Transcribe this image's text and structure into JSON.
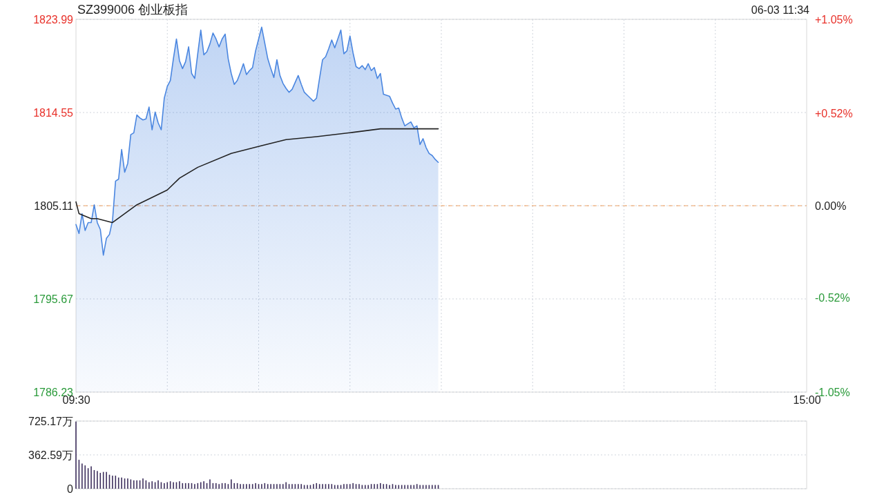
{
  "chart_data": [
    {
      "type": "area",
      "title": "SZ399006 创业板指",
      "annotations": [
        "06-03 11:34"
      ],
      "categories": [
        "09:30",
        null,
        null,
        null,
        null,
        null,
        null,
        null,
        null,
        null,
        null,
        null,
        null,
        null,
        null,
        null,
        null,
        null,
        null,
        null,
        null,
        null,
        null,
        null,
        null,
        null,
        null,
        null,
        null,
        null,
        null,
        null,
        null,
        null,
        null,
        null,
        null,
        null,
        null,
        null,
        null,
        null,
        null,
        null,
        null,
        null,
        null,
        null,
        null,
        null,
        null,
        null,
        null,
        null,
        null,
        null,
        null,
        null,
        null,
        null,
        null,
        null,
        null,
        null,
        null,
        null,
        null,
        null,
        null,
        null,
        null,
        null,
        null,
        null,
        null,
        null,
        null,
        null,
        null,
        null,
        null,
        null,
        null,
        null,
        null,
        null,
        null,
        null,
        null,
        null,
        null,
        null,
        null,
        null,
        null,
        null,
        null,
        null,
        null,
        null,
        null,
        null,
        null,
        null,
        null,
        null,
        null,
        null,
        null,
        null,
        null,
        null,
        null,
        null,
        null,
        null,
        null,
        null,
        null,
        null,
        null,
        null,
        null,
        null,
        null,
        null,
        null,
        null,
        null,
        null,
        null,
        null,
        null,
        null,
        null,
        null,
        null,
        null,
        null,
        null,
        null,
        null,
        null,
        null,
        null,
        null,
        null,
        null,
        null,
        null,
        null,
        null,
        null,
        null,
        null,
        null,
        null,
        null,
        null,
        null,
        null,
        null,
        null,
        null,
        null,
        null,
        null,
        null,
        null,
        null,
        null,
        null,
        null,
        null,
        null,
        null,
        null,
        null,
        null,
        null,
        null,
        null,
        null,
        null,
        null,
        null,
        null,
        null,
        null,
        null,
        null,
        null,
        null,
        null,
        null,
        null,
        null,
        null,
        null,
        null,
        null,
        null,
        null,
        null,
        null,
        null,
        null,
        null,
        null,
        null,
        null,
        null,
        null,
        null,
        null,
        null,
        null,
        null,
        null,
        null,
        null,
        null,
        null,
        null,
        null,
        null,
        null,
        null,
        null,
        null,
        null,
        null,
        null,
        null,
        null,
        null,
        null,
        null,
        null,
        null,
        "15:00"
      ],
      "series": [
        {
          "color": "#4a86e0",
          "values": [
            1803.2,
            1802.3,
            1804.3,
            1802.6,
            1803.4,
            1803.4,
            1805.2,
            1803.4,
            1802.7,
            1800.1,
            1801.8,
            1802.2,
            1803.6,
            1807.6,
            1807.8,
            1810.8,
            1808.5,
            1809.4,
            1812.3,
            1812.5,
            1814.3,
            1814.0,
            1813.8,
            1813.9,
            1815.1,
            1812.8,
            1814.6,
            1813.5,
            1812.8,
            1816.0,
            1817.2,
            1817.8,
            1820.0,
            1822.0,
            1819.8,
            1819.0,
            1819.7,
            1821.2,
            1818.5,
            1818.0,
            1820.5,
            1822.9,
            1820.4,
            1820.7,
            1821.5,
            1822.6,
            1822.0,
            1821.2,
            1822.0,
            1822.5,
            1820.0,
            1818.5,
            1817.4,
            1817.8,
            1818.6,
            1819.5,
            1818.4,
            1818.8,
            1819.1,
            1820.8,
            1822.0,
            1823.2,
            1821.6,
            1820.0,
            1819.0,
            1818.1,
            1819.9,
            1818.3,
            1817.5,
            1817.0,
            1816.6,
            1816.9,
            1817.6,
            1818.3,
            1817.4,
            1816.6,
            1816.3,
            1816.0,
            1815.7,
            1816.0,
            1818.0,
            1819.9,
            1820.2,
            1821.0,
            1821.9,
            1821.1,
            1822.0,
            1822.9,
            1820.5,
            1820.8,
            1822.3,
            1820.6,
            1819.2,
            1819.0,
            1819.3,
            1818.9,
            1819.5,
            1818.8,
            1819.1,
            1818.0,
            1818.5,
            1816.4,
            1816.3,
            1816.2,
            1815.5,
            1814.9,
            1815.0,
            1814.0,
            1813.2,
            1813.4,
            1813.6,
            1813.0,
            1813.2,
            1811.3,
            1811.9,
            1811.0,
            1810.4,
            1810.2,
            1809.8,
            1809.5,
            null,
            null,
            null,
            null,
            null,
            null,
            null,
            null,
            null,
            null,
            null,
            null,
            null,
            null,
            null,
            null,
            null,
            null,
            null,
            null,
            null,
            null,
            null,
            null,
            null,
            null,
            null,
            null,
            null,
            null,
            null,
            null,
            null,
            null,
            null,
            null,
            null,
            null,
            null,
            null,
            null,
            null,
            null,
            null,
            null,
            null,
            null,
            null,
            null,
            null,
            null,
            null,
            null,
            null,
            null,
            null,
            null,
            null,
            null,
            null,
            null,
            null,
            null,
            null,
            null,
            null,
            null,
            null,
            null,
            null,
            null,
            null,
            null,
            null,
            null,
            null,
            null,
            null,
            null,
            null,
            null,
            null,
            null,
            null,
            null,
            null,
            null,
            null,
            null,
            null,
            null,
            null,
            null,
            null,
            null,
            null,
            null,
            null,
            null,
            null,
            null,
            null,
            null,
            null,
            null,
            null,
            null,
            null,
            null,
            null,
            null,
            null,
            null,
            null,
            null,
            null,
            null,
            null,
            null,
            null,
            null
          ]
        },
        {
          "type": "line",
          "color": "#222222",
          "values": [
            1805.5,
            1804.3,
            null,
            null,
            null,
            1803.8,
            null,
            1803.8,
            null,
            null,
            null,
            null,
            1803.4,
            null,
            null,
            null,
            null,
            null,
            null,
            null,
            1805.2,
            null,
            null,
            null,
            null,
            null,
            null,
            null,
            null,
            null,
            1806.7,
            null,
            null,
            null,
            1807.9,
            null,
            null,
            null,
            null,
            null,
            1809.0,
            null,
            null,
            null,
            null,
            null,
            null,
            null,
            null,
            null,
            null,
            1810.4,
            null,
            null,
            null,
            null,
            null,
            null,
            null,
            null,
            null,
            1811.2,
            null,
            null,
            null,
            null,
            null,
            null,
            null,
            1811.8,
            null,
            null,
            null,
            null,
            null,
            null,
            null,
            null,
            null,
            1812.1,
            null,
            null,
            null,
            null,
            null,
            null,
            null,
            null,
            null,
            null,
            1812.5,
            null,
            null,
            null,
            null,
            null,
            null,
            null,
            null,
            null,
            1812.9,
            null,
            null,
            null,
            1812.9,
            null,
            null,
            null,
            null,
            null,
            null,
            null,
            null,
            null,
            null,
            null,
            null,
            null,
            null,
            1812.9,
            null,
            null,
            null,
            null,
            null,
            null,
            null,
            null,
            null,
            null,
            null,
            null,
            null,
            null,
            null,
            null,
            null,
            null,
            null,
            null,
            null,
            null,
            null,
            null,
            null,
            null,
            null,
            null,
            null,
            null,
            null,
            null,
            null,
            null,
            null,
            null,
            null,
            null,
            null,
            null,
            null,
            null,
            null,
            null,
            null,
            null,
            null,
            null,
            null,
            null,
            null,
            null,
            null,
            null,
            null,
            null,
            null,
            null,
            null,
            null,
            null,
            null,
            null,
            null,
            null,
            null,
            null,
            null,
            null,
            null,
            null,
            null,
            null,
            null,
            null,
            null,
            null,
            null,
            null,
            null,
            null,
            null,
            null,
            null,
            null,
            null,
            null,
            null,
            null,
            null,
            null,
            null,
            null,
            null,
            null,
            null,
            null,
            null,
            null,
            null,
            null,
            null,
            null,
            null,
            null,
            null,
            null,
            null,
            null,
            null,
            null,
            null,
            null,
            null,
            null,
            null,
            null,
            null,
            null,
            null,
            null
          ]
        }
      ],
      "ylim": [
        1786.23,
        1823.99
      ],
      "yticks": [
        1786.23,
        1795.67,
        1805.11,
        1814.55,
        1823.99
      ],
      "y2lim": [
        -1.05,
        1.05
      ],
      "y2ticks": [
        {
          "value": -1.05,
          "label": "-1.05%"
        },
        {
          "value": -0.52,
          "label": "-0.52%"
        },
        {
          "value": 0,
          "label": "0.00%"
        },
        {
          "value": 0.52,
          "label": "+0.52%"
        },
        {
          "value": 1.05,
          "label": "+1.05%"
        }
      ],
      "ref_lines": [
        {
          "axis": "y",
          "value": 1805.11,
          "color": "#f0a060",
          "line_style": "dashed"
        }
      ],
      "grid": true
    },
    {
      "type": "bar",
      "color": "#3d2f5c",
      "categories": [
        null,
        null,
        null,
        null,
        null,
        null,
        null,
        null,
        null,
        null,
        null,
        null,
        null,
        null,
        null,
        null,
        null,
        null,
        null,
        null,
        null,
        null,
        null,
        null,
        null,
        null,
        null,
        null,
        null,
        null,
        null,
        null,
        null,
        null,
        null,
        null,
        null,
        null,
        null,
        null,
        null,
        null,
        null,
        null,
        null,
        null,
        null,
        null,
        null,
        null,
        null,
        null,
        null,
        null,
        null,
        null,
        null,
        null,
        null,
        null,
        null,
        null,
        null,
        null,
        null,
        null,
        null,
        null,
        null,
        null,
        null,
        null,
        null,
        null,
        null,
        null,
        null,
        null,
        null,
        null,
        null,
        null,
        null,
        null,
        null,
        null,
        null,
        null,
        null,
        null,
        null,
        null,
        null,
        null,
        null,
        null,
        null,
        null,
        null,
        null,
        null,
        null,
        null,
        null,
        null,
        null,
        null,
        null,
        null,
        null,
        null,
        null,
        null,
        null,
        null,
        null,
        null,
        null,
        null,
        null,
        null,
        null,
        null,
        null,
        null,
        null,
        null,
        null,
        null,
        null,
        null,
        null,
        null,
        null,
        null,
        null,
        null,
        null,
        null,
        null,
        null,
        null,
        null,
        null,
        null,
        null,
        null,
        null,
        null,
        null,
        null,
        null,
        null,
        null,
        null,
        null,
        null,
        null,
        null,
        null,
        null,
        null,
        null,
        null,
        null,
        null,
        null,
        null,
        null,
        null,
        null,
        null,
        null,
        null,
        null,
        null,
        null,
        null,
        null,
        null,
        null,
        null,
        null,
        null,
        null,
        null,
        null,
        null,
        null,
        null,
        null,
        null,
        null,
        null,
        null,
        null,
        null,
        null,
        null,
        null,
        null,
        null,
        null,
        null,
        null,
        null,
        null,
        null,
        null,
        null,
        null,
        null,
        null,
        null,
        null,
        null,
        null,
        null,
        null,
        null,
        null,
        null,
        null,
        null,
        null,
        null,
        null,
        null,
        null,
        null,
        null,
        null,
        null,
        null,
        null,
        null,
        null,
        null,
        null,
        null,
        null
      ],
      "values": [
        720,
        310,
        270,
        250,
        220,
        240,
        200,
        190,
        170,
        180,
        180,
        150,
        140,
        140,
        120,
        120,
        110,
        110,
        100,
        90,
        90,
        90,
        110,
        90,
        70,
        80,
        70,
        90,
        70,
        60,
        70,
        80,
        70,
        70,
        80,
        60,
        60,
        60,
        60,
        50,
        60,
        70,
        80,
        60,
        100,
        60,
        60,
        50,
        60,
        60,
        50,
        100,
        60,
        60,
        50,
        50,
        50,
        50,
        50,
        60,
        50,
        50,
        60,
        50,
        50,
        50,
        50,
        50,
        50,
        70,
        50,
        50,
        50,
        50,
        50,
        40,
        40,
        40,
        50,
        60,
        50,
        50,
        50,
        50,
        50,
        40,
        40,
        40,
        50,
        50,
        50,
        60,
        50,
        50,
        40,
        40,
        40,
        50,
        50,
        50,
        60,
        50,
        50,
        40,
        50,
        40,
        40,
        40,
        40,
        40,
        40,
        40,
        50,
        40,
        40,
        40,
        40,
        40,
        40,
        40,
        null,
        null,
        null,
        null,
        null,
        null,
        null,
        null,
        null,
        null,
        null,
        null,
        null,
        null,
        null,
        null,
        null,
        null,
        null,
        null,
        null,
        null,
        null,
        null,
        null,
        null,
        null,
        null,
        null,
        null,
        null,
        null,
        null,
        null,
        null,
        null,
        null,
        null,
        null,
        null,
        null,
        null,
        null,
        null,
        null,
        null,
        null,
        null,
        null,
        null,
        null,
        null,
        null,
        null,
        null,
        null,
        null,
        null,
        null,
        null,
        null,
        null,
        null,
        null,
        null,
        null,
        null,
        null,
        null,
        null,
        null,
        null,
        null,
        null,
        null,
        null,
        null,
        null,
        null,
        null,
        null,
        null,
        null,
        null,
        null,
        null,
        null,
        null,
        null,
        null,
        null,
        null,
        null,
        null,
        null,
        null,
        null,
        null,
        null,
        null,
        null,
        null,
        null,
        null,
        null,
        null,
        null,
        null,
        null,
        null,
        null,
        null,
        null,
        null,
        null,
        null,
        null,
        null,
        null,
        null,
        null
      ],
      "ylim": [
        0,
        725.17
      ],
      "yticks": [
        0,
        {
          "value": 362.59,
          "label": "362.59万"
        },
        {
          "value": 725.17,
          "label": "725.17万"
        }
      ],
      "tick_labels": "y",
      "grid": "y"
    }
  ]
}
